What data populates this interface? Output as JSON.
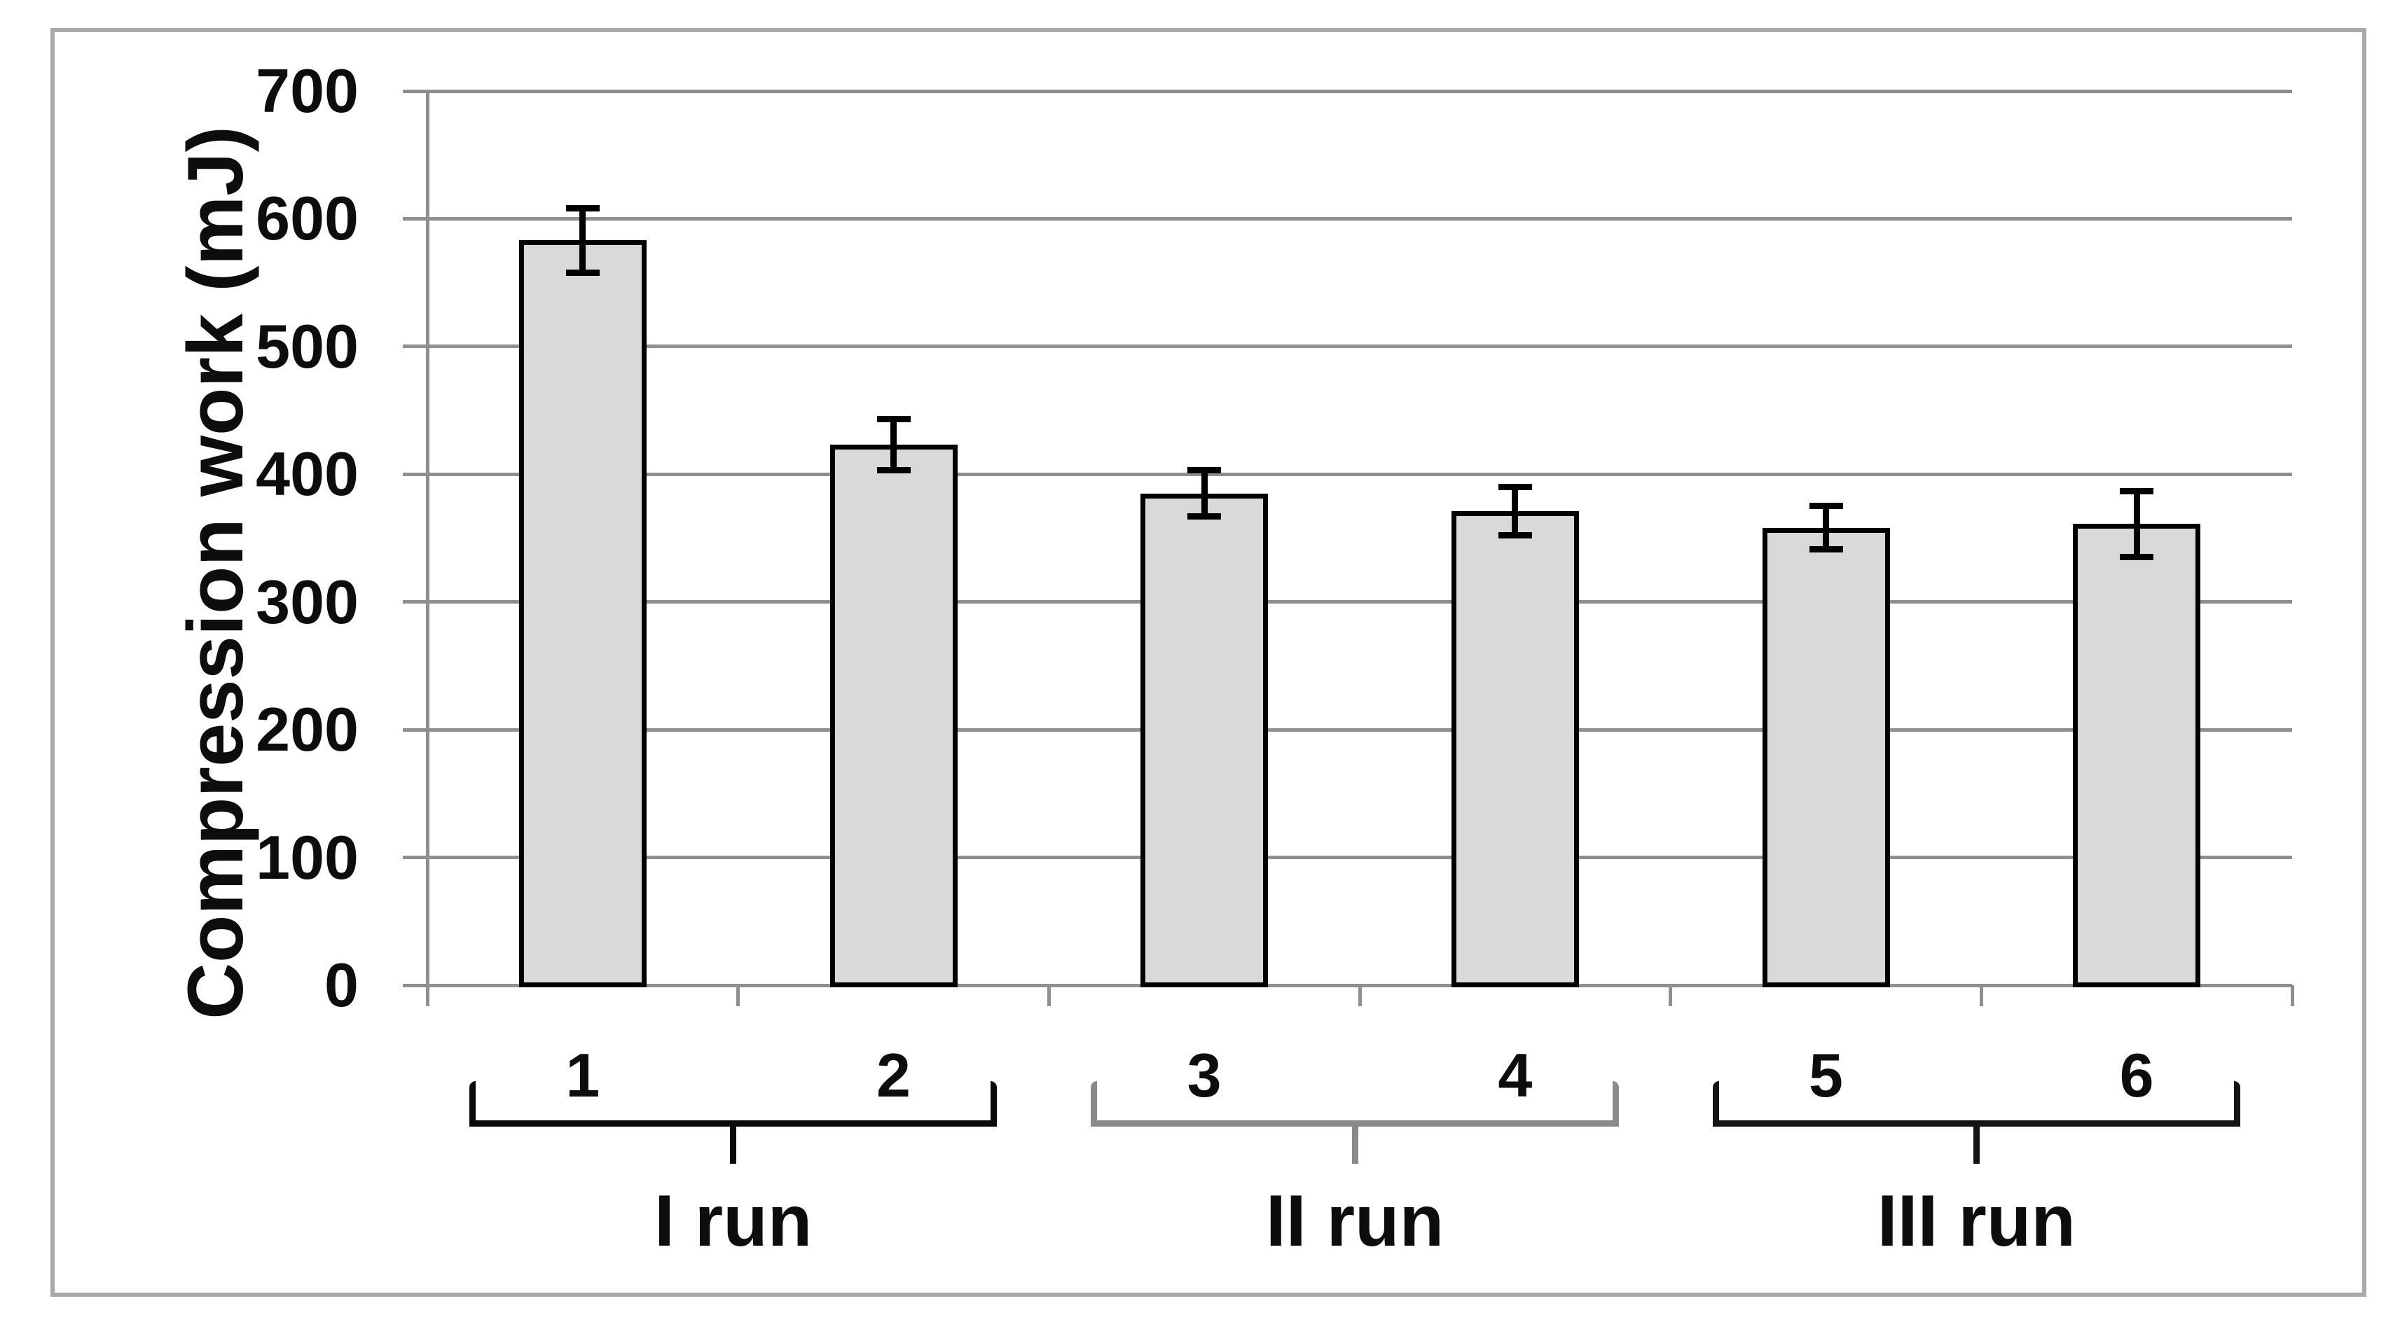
{
  "chart_data": {
    "type": "bar",
    "title": "",
    "xlabel": "",
    "ylabel": "Compression work (mJ)",
    "categories": [
      "1",
      "2",
      "3",
      "4",
      "5",
      "6"
    ],
    "values": [
      583,
      423,
      385,
      371,
      358,
      361
    ],
    "error_bars": [
      25,
      20,
      18,
      19,
      17,
      26
    ],
    "groups": [
      {
        "label": "I run",
        "categories": [
          "1",
          "2"
        ],
        "bracket_color": "#0a0a0a"
      },
      {
        "label": "II run",
        "categories": [
          "3",
          "4"
        ],
        "bracket_color": "#8a8a8a"
      },
      {
        "label": "III run",
        "categories": [
          "5",
          "6"
        ],
        "bracket_color": "#141414"
      }
    ],
    "ylim": [
      0,
      700
    ],
    "yticks": [
      0,
      100,
      200,
      300,
      400,
      500,
      600,
      700
    ],
    "grid": true,
    "legend": false,
    "colors": {
      "bar_fill": "#d9d9d9",
      "bar_border": "#000000",
      "error_bar": "#000000",
      "gridline": "#8f8f8f",
      "axis": "#8f8f8f",
      "frame_border": "#a9a9a9",
      "background": "#ffffff",
      "text": "#0d0d0d"
    }
  }
}
